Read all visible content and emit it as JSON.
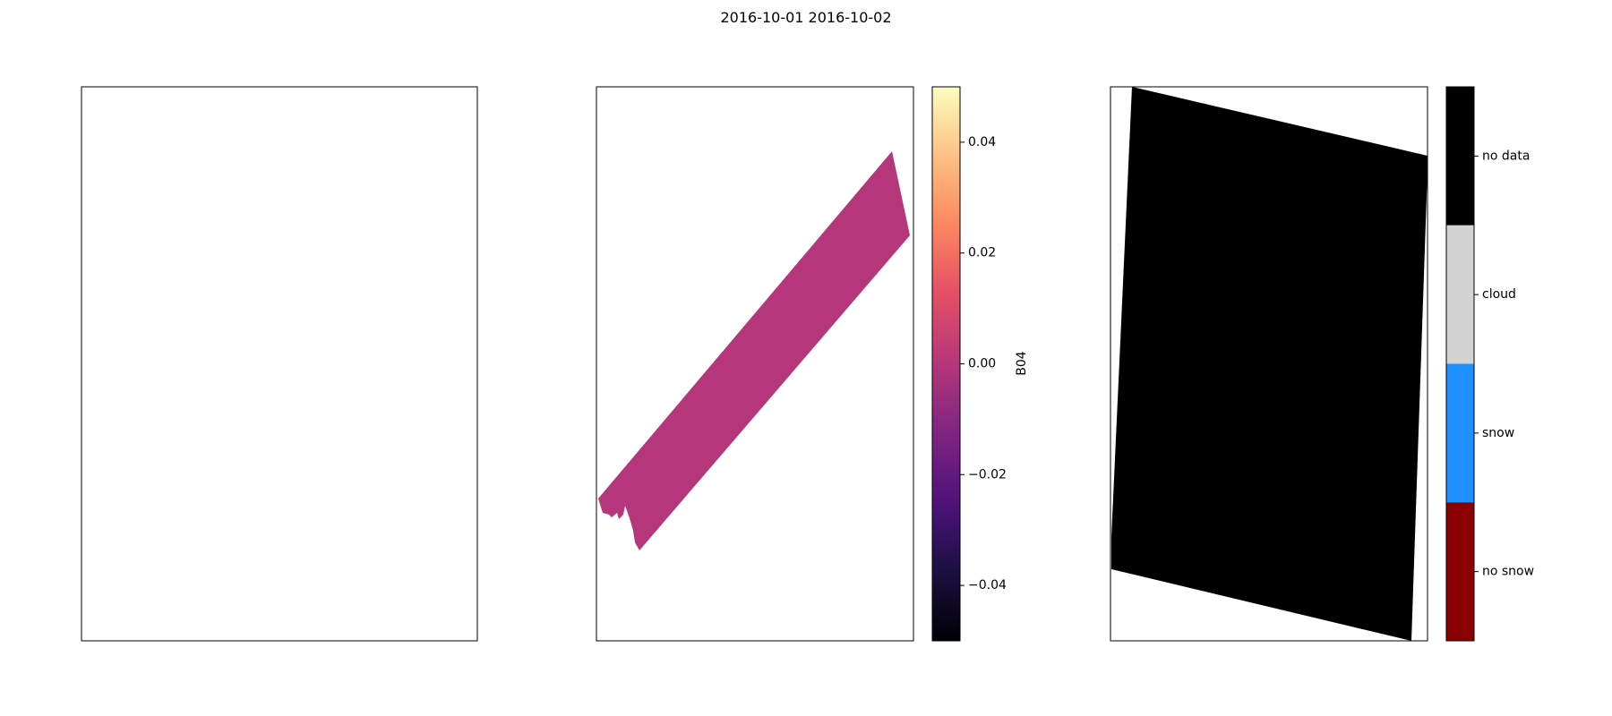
{
  "figure": {
    "title": "2016-10-01 2016-10-02"
  },
  "chart_data": [
    {
      "type": "heatmap",
      "title": "",
      "xlabel": "",
      "ylabel": "",
      "grid": false,
      "content": "empty"
    },
    {
      "type": "heatmap",
      "title": "",
      "xlabel": "",
      "ylabel": "",
      "grid": false,
      "swath_value": 0.0,
      "colorbar": {
        "label": "B04",
        "cmap": "magma",
        "range": [
          -0.05,
          0.05
        ],
        "ticks": [
          {
            "value": 0.04,
            "label": "0.04"
          },
          {
            "value": 0.02,
            "label": "0.02"
          },
          {
            "value": 0.0,
            "label": "0.00"
          },
          {
            "value": -0.02,
            "label": "−0.02"
          },
          {
            "value": -0.04,
            "label": "−0.04"
          }
        ]
      }
    },
    {
      "type": "heatmap",
      "title": "",
      "xlabel": "",
      "ylabel": "",
      "grid": false,
      "tile_class": "no data",
      "colorbar": {
        "categories": [
          {
            "label": "no data",
            "color": "#000000"
          },
          {
            "label": "cloud",
            "color": "#d3d3d3"
          },
          {
            "label": "snow",
            "color": "#1e90ff"
          },
          {
            "label": "no snow",
            "color": "#8b0000"
          }
        ]
      }
    }
  ]
}
